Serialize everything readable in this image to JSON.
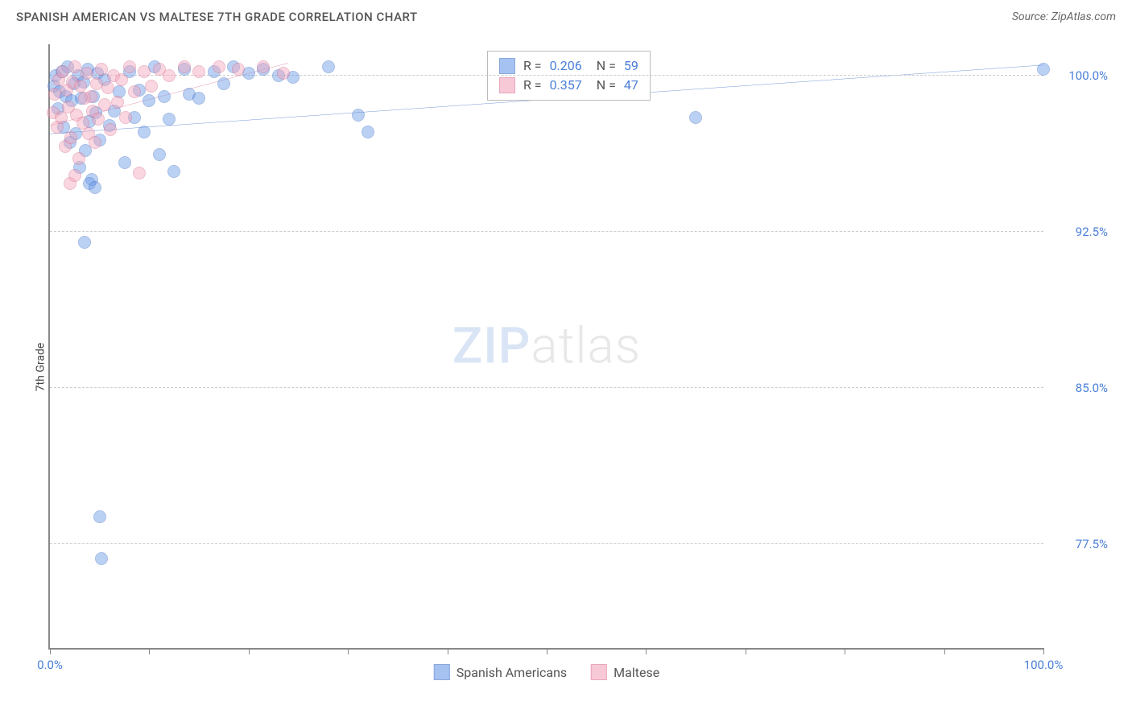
{
  "header": {
    "title": "SPANISH AMERICAN VS MALTESE 7TH GRADE CORRELATION CHART",
    "source": "Source: ZipAtlas.com"
  },
  "watermark": {
    "bold": "ZIP",
    "light": "atlas"
  },
  "chart": {
    "type": "scatter",
    "ylabel": "7th Grade",
    "background_color": "#ffffff",
    "grid_color": "#cccccc",
    "axis_color": "#888888",
    "xlim": [
      0,
      100
    ],
    "ylim": [
      72.5,
      101.5
    ],
    "xticks": [
      0,
      10,
      20,
      30,
      40,
      50,
      60,
      70,
      80,
      90,
      100
    ],
    "xtick_labels": {
      "0": "0.0%",
      "100": "100.0%"
    },
    "yticks": [
      77.5,
      85.0,
      92.5,
      100.0
    ],
    "ytick_labels": [
      "77.5%",
      "85.0%",
      "92.5%",
      "100.0%"
    ],
    "marker_radius": 8,
    "marker_opacity": 0.45,
    "stats_box": {
      "left_pct": 44,
      "top_pct": 1
    },
    "series": [
      {
        "name": "Spanish Americans",
        "color": "#6a9ae8",
        "border": "#3d6fc4",
        "R": "0.206",
        "N": "59",
        "trend": {
          "x1": 0,
          "y1": 97.2,
          "x2": 100,
          "y2": 100.5,
          "width": 2
        },
        "points": [
          [
            0.4,
            99.5
          ],
          [
            0.6,
            100
          ],
          [
            0.8,
            98.4
          ],
          [
            1.0,
            99.2
          ],
          [
            1.2,
            100.2
          ],
          [
            1.4,
            97.5
          ],
          [
            1.6,
            99.0
          ],
          [
            1.8,
            100.4
          ],
          [
            2.0,
            96.8
          ],
          [
            2.2,
            98.8
          ],
          [
            2.4,
            99.6
          ],
          [
            2.6,
            97.2
          ],
          [
            2.8,
            100.0
          ],
          [
            3.0,
            95.6
          ],
          [
            3.2,
            98.9
          ],
          [
            3.4,
            99.7
          ],
          [
            3.6,
            96.4
          ],
          [
            3.8,
            100.3
          ],
          [
            4.0,
            97.8
          ],
          [
            4.2,
            95.0
          ],
          [
            4.4,
            99.0
          ],
          [
            4.6,
            98.2
          ],
          [
            4.8,
            100.1
          ],
          [
            5.0,
            96.9
          ],
          [
            5.5,
            99.8
          ],
          [
            6.0,
            97.6
          ],
          [
            6.5,
            98.3
          ],
          [
            7.0,
            99.2
          ],
          [
            7.5,
            95.8
          ],
          [
            8.0,
            100.2
          ],
          [
            8.5,
            98.0
          ],
          [
            9.0,
            99.3
          ],
          [
            9.5,
            97.3
          ],
          [
            10.0,
            98.8
          ],
          [
            10.5,
            100.4
          ],
          [
            11.0,
            96.2
          ],
          [
            11.5,
            99.0
          ],
          [
            12.0,
            97.9
          ],
          [
            12.5,
            95.4
          ],
          [
            13.5,
            100.3
          ],
          [
            14.0,
            99.1
          ],
          [
            15.0,
            98.9
          ],
          [
            16.5,
            100.2
          ],
          [
            17.5,
            99.6
          ],
          [
            18.5,
            100.4
          ],
          [
            20.0,
            100.1
          ],
          [
            21.5,
            100.3
          ],
          [
            23.0,
            100.0
          ],
          [
            24.5,
            99.9
          ],
          [
            28.0,
            100.4
          ],
          [
            31.0,
            98.1
          ],
          [
            32.0,
            97.3
          ],
          [
            3.5,
            92.0
          ],
          [
            5.0,
            78.8
          ],
          [
            5.2,
            76.8
          ],
          [
            4.0,
            94.8
          ],
          [
            4.5,
            94.6
          ],
          [
            65.0,
            98.0
          ],
          [
            100.0,
            100.3
          ]
        ]
      },
      {
        "name": "Maltese",
        "color": "#f2a6bb",
        "border": "#d96e8e",
        "R": "0.357",
        "N": "47",
        "trend": {
          "x1": 0,
          "y1": 97.6,
          "x2": 24,
          "y2": 100.6,
          "width": 2
        },
        "points": [
          [
            0.3,
            98.2
          ],
          [
            0.5,
            99.1
          ],
          [
            0.7,
            97.5
          ],
          [
            0.9,
            99.8
          ],
          [
            1.1,
            98.0
          ],
          [
            1.3,
            100.2
          ],
          [
            1.5,
            96.6
          ],
          [
            1.7,
            99.3
          ],
          [
            1.9,
            98.5
          ],
          [
            2.1,
            97.0
          ],
          [
            2.3,
            99.7
          ],
          [
            2.5,
            100.4
          ],
          [
            2.7,
            98.1
          ],
          [
            2.9,
            96.0
          ],
          [
            3.1,
            99.5
          ],
          [
            3.3,
            97.7
          ],
          [
            3.5,
            98.9
          ],
          [
            3.7,
            100.1
          ],
          [
            3.9,
            97.2
          ],
          [
            4.1,
            99.0
          ],
          [
            4.3,
            98.3
          ],
          [
            4.5,
            96.8
          ],
          [
            4.7,
            99.6
          ],
          [
            4.9,
            97.9
          ],
          [
            5.2,
            100.3
          ],
          [
            5.5,
            98.6
          ],
          [
            5.8,
            99.4
          ],
          [
            6.1,
            97.4
          ],
          [
            6.4,
            100.0
          ],
          [
            6.8,
            98.7
          ],
          [
            7.2,
            99.8
          ],
          [
            7.6,
            98.0
          ],
          [
            8.0,
            100.4
          ],
          [
            8.5,
            99.2
          ],
          [
            9.0,
            95.3
          ],
          [
            9.5,
            100.2
          ],
          [
            10.2,
            99.5
          ],
          [
            11.0,
            100.3
          ],
          [
            12.0,
            100.0
          ],
          [
            13.5,
            100.4
          ],
          [
            15.0,
            100.2
          ],
          [
            17.0,
            100.4
          ],
          [
            19.0,
            100.3
          ],
          [
            21.5,
            100.4
          ],
          [
            23.5,
            100.1
          ],
          [
            2.0,
            94.8
          ],
          [
            2.5,
            95.2
          ]
        ]
      }
    ],
    "bottom_legend": [
      {
        "label": "Spanish Americans",
        "series": 0
      },
      {
        "label": "Maltese",
        "series": 1
      }
    ]
  }
}
